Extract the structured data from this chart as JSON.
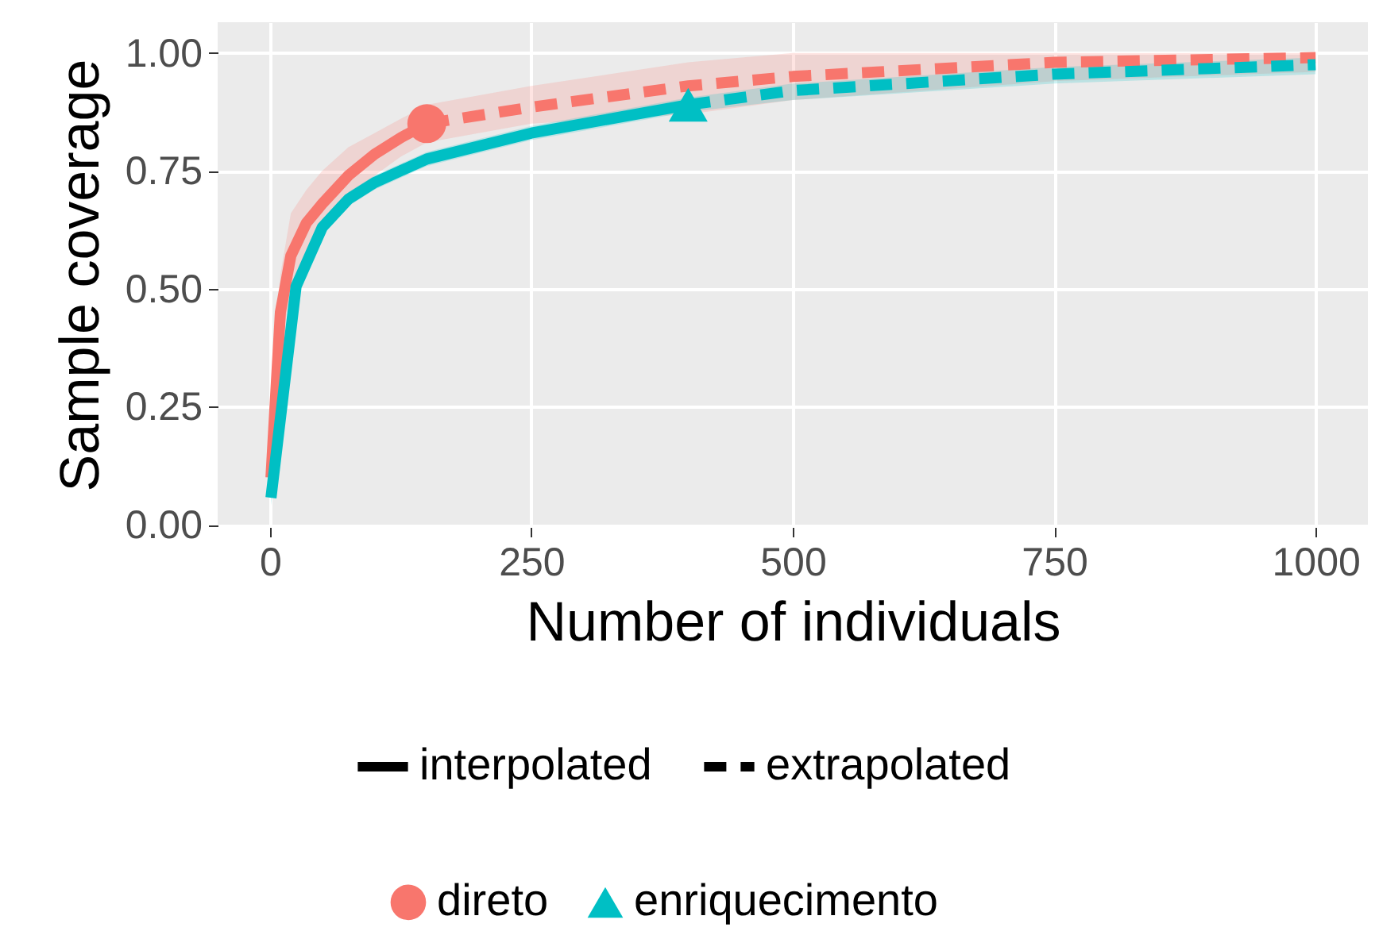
{
  "chart_data": {
    "type": "line",
    "xlabel": "Number of individuals",
    "ylabel": "Sample coverage",
    "xlim": [
      -50,
      1050
    ],
    "xticks": [
      0,
      250,
      500,
      750,
      1000
    ],
    "ylim": [
      -0.005,
      1.065
    ],
    "yticks": [
      {
        "value": 0,
        "label": "0.00"
      },
      {
        "value": 0.25,
        "label": "0.25"
      },
      {
        "value": 0.5,
        "label": "0.50"
      },
      {
        "value": 0.75,
        "label": "0.75"
      },
      {
        "value": 1,
        "label": "1.00"
      }
    ],
    "grid": true,
    "legend": "bottom",
    "annotations": [
      "interpolated",
      "extrapolated"
    ],
    "series": [
      {
        "color": "#f8766d",
        "line_style": "solid",
        "x": [
          1,
          10,
          20,
          35,
          50,
          75,
          100,
          125,
          150
        ],
        "values": [
          0.1,
          0.45,
          0.57,
          0.64,
          0.68,
          0.74,
          0.785,
          0.82,
          0.85
        ],
        "lower": [
          0.06,
          0.38,
          0.49,
          0.57,
          0.62,
          0.69,
          0.74,
          0.78,
          0.81
        ],
        "upper": [
          0.14,
          0.53,
          0.66,
          0.71,
          0.75,
          0.8,
          0.83,
          0.86,
          0.89
        ]
      },
      {
        "color": "#f8766d",
        "line_style": "dashed",
        "x": [
          150,
          250,
          400,
          500,
          750,
          1000
        ],
        "values": [
          0.85,
          0.885,
          0.93,
          0.95,
          0.98,
          0.99
        ],
        "lower": [
          0.81,
          0.85,
          0.87,
          0.9,
          0.94,
          0.96
        ],
        "upper": [
          0.89,
          0.93,
          0.98,
          1.0,
          1.0,
          1.0
        ]
      },
      {
        "color": "#00bfc4",
        "line_style": "solid",
        "x": [
          1,
          25,
          50,
          75,
          100,
          150,
          250,
          400
        ],
        "values": [
          0.057,
          0.505,
          0.63,
          0.69,
          0.725,
          0.775,
          0.83,
          0.89
        ],
        "lower": [
          0.04,
          0.49,
          0.615,
          0.675,
          0.71,
          0.76,
          0.815,
          0.875
        ],
        "upper": [
          0.07,
          0.52,
          0.645,
          0.705,
          0.74,
          0.79,
          0.845,
          0.905
        ]
      },
      {
        "color": "#00bfc4",
        "line_style": "dashed",
        "x": [
          400,
          500,
          750,
          1000
        ],
        "values": [
          0.89,
          0.92,
          0.955,
          0.975
        ],
        "lower": [
          0.875,
          0.9,
          0.935,
          0.955
        ],
        "upper": [
          0.905,
          0.935,
          0.97,
          0.99
        ]
      },
      {
        "name": "direto",
        "type": "scatter",
        "marker": "circle",
        "color": "#f8766d",
        "x": [
          150
        ],
        "values": [
          0.85
        ]
      },
      {
        "name": "enriquecimento",
        "type": "scatter",
        "marker": "triangle",
        "color": "#00bfc4",
        "x": [
          400
        ],
        "values": [
          0.89
        ]
      }
    ]
  }
}
